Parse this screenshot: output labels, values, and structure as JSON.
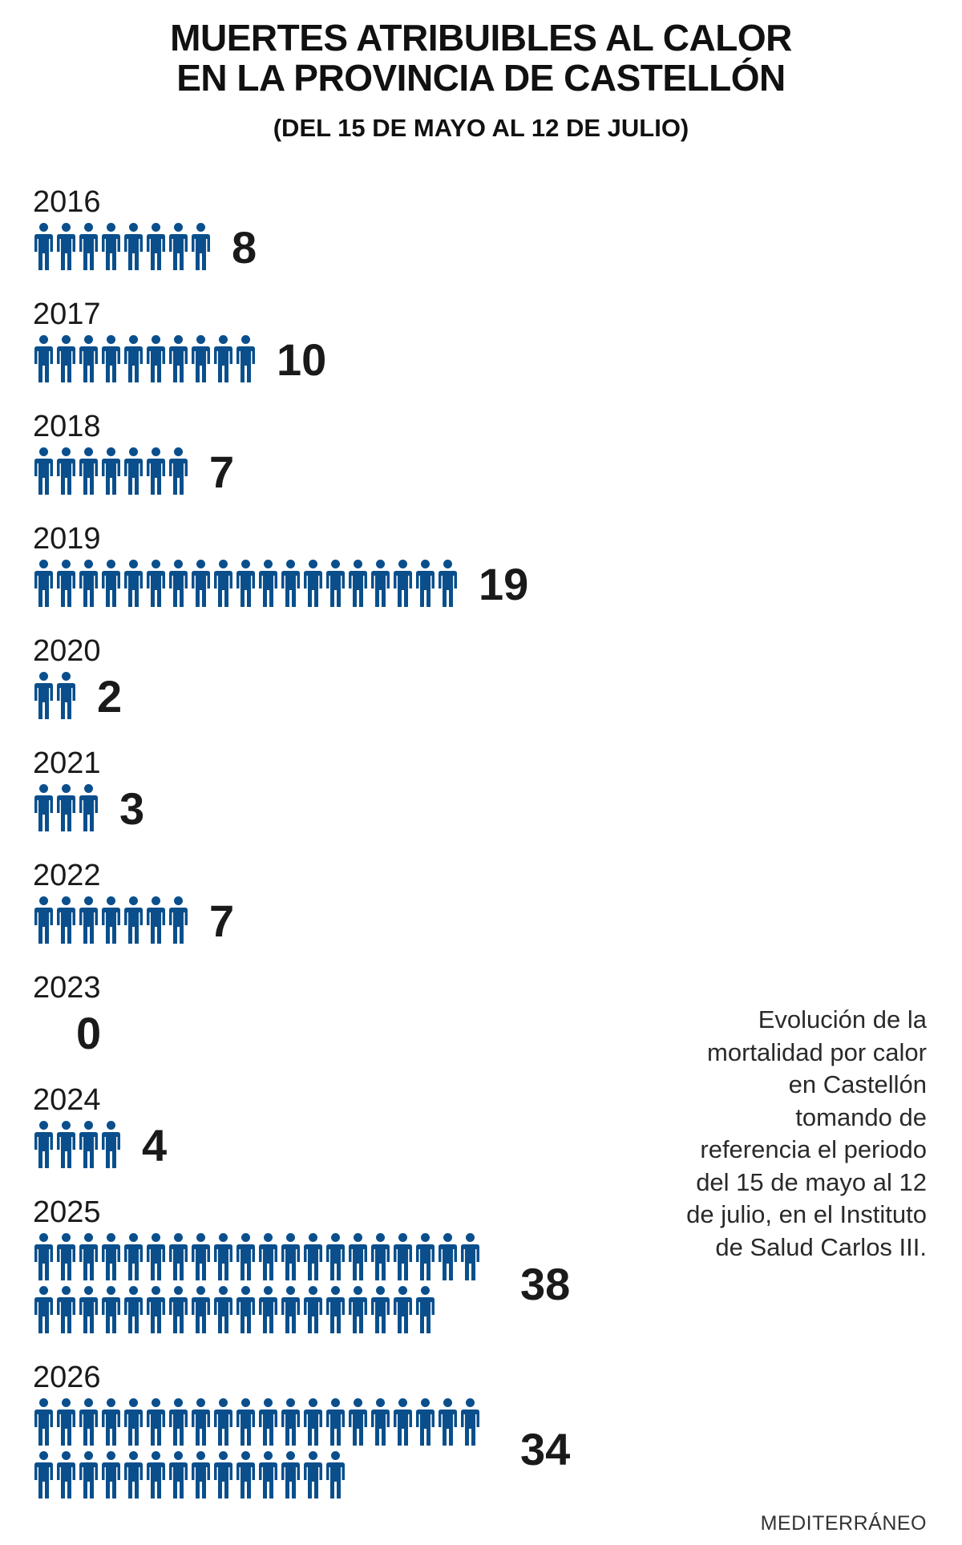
{
  "header": {
    "title_line1": "MUERTES ATRIBUIBLES AL CALOR",
    "title_line2": "EN LA PROVINCIA DE CASTELLÓN",
    "subtitle": "(DEL 15 DE MAYO AL 12 DE JULIO)"
  },
  "chart_data": {
    "type": "bar",
    "categories": [
      "2016",
      "2017",
      "2018",
      "2019",
      "2020",
      "2021",
      "2022",
      "2023",
      "2024",
      "2025",
      "2026"
    ],
    "values": [
      8,
      10,
      7,
      19,
      2,
      3,
      7,
      0,
      4,
      38,
      34
    ],
    "data_labels": [
      "8",
      "10",
      "7",
      "19",
      "2",
      "3",
      "7",
      "0",
      "4",
      "38",
      "34"
    ],
    "icon": "person-icon",
    "icon_color": "#0a4f8c",
    "icons_per_row": 20
  },
  "note": "Evolución de la mortalidad por calor en Castellón tomando de referencia el periodo del 15 de mayo al 12 de julio, en el Instituto de Salud Carlos III.",
  "credit": "MEDITERRÁNEO"
}
